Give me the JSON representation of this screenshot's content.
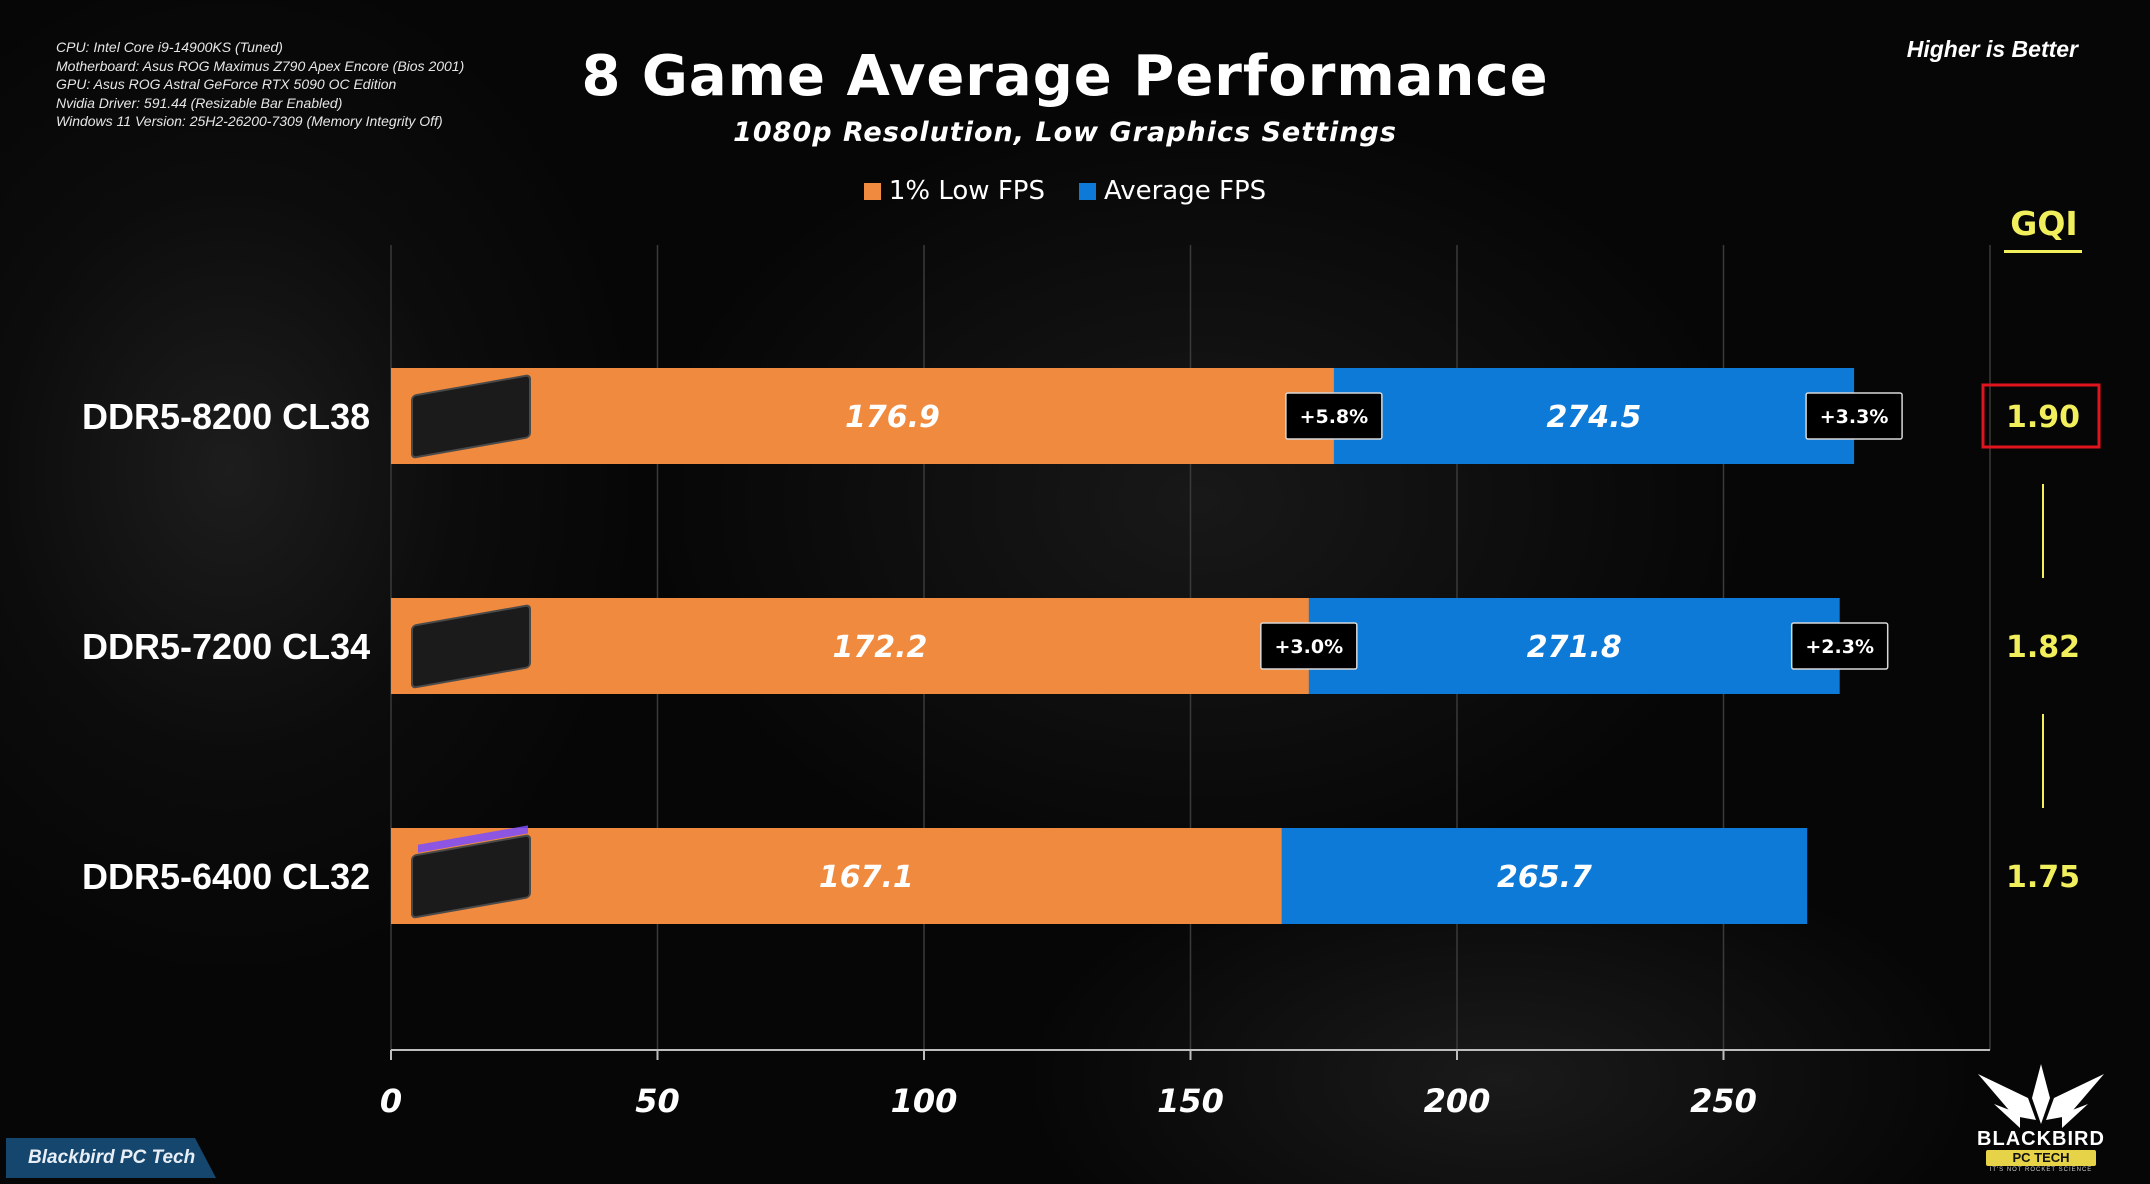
{
  "header": {
    "title": "8 Game Average Performance",
    "subtitle": "1080p Resolution, Low Graphics Settings",
    "higher_is_better": "Higher is Better"
  },
  "specs": [
    "CPU: Intel Core i9-14900KS (Tuned)",
    "Motherboard: Asus ROG Maximus Z790 Apex Encore (Bios 2001)",
    "GPU: Asus ROG Astral GeForce RTX 5090 OC Edition",
    "Nvidia Driver: 591.44 (Resizable Bar Enabled)",
    "Windows 11 Version:  25H2-26200-7309 (Memory Integrity Off)"
  ],
  "legend": {
    "low": "1% Low FPS",
    "avg": "Average FPS"
  },
  "gqi": {
    "header": "GQI"
  },
  "brand": {
    "tab": "Blackbird PC Tech",
    "logo_main": "BLACKBIRD",
    "logo_sub": "PC TECH",
    "logo_tag": "IT'S NOT ROCKET SCIENCE"
  },
  "colors": {
    "low": "#f08a3e",
    "avg": "#0d7ad8",
    "gqi": "#f2ef5c",
    "highlight": "#e0141e"
  },
  "chart_data": {
    "type": "bar",
    "orientation": "horizontal",
    "title": "8 Game Average Performance",
    "subtitle": "1080p Resolution, Low Graphics Settings",
    "categories": [
      "DDR5-8200 CL38",
      "DDR5-7200 CL34",
      "DDR5-6400 CL32"
    ],
    "series": [
      {
        "name": "1% Low FPS",
        "values": [
          176.9,
          172.2,
          167.1
        ],
        "pct_gain": [
          "+5.8%",
          "+3.0%",
          ""
        ]
      },
      {
        "name": "Average FPS",
        "values": [
          274.5,
          271.8,
          265.7
        ],
        "pct_gain": [
          "+3.3%",
          "+2.3%",
          ""
        ]
      }
    ],
    "gqi": [
      "1.90",
      "1.82",
      "1.75"
    ],
    "gqi_highlight_index": 0,
    "xlim": [
      0,
      300
    ],
    "xticks": [
      0,
      50,
      100,
      150,
      200,
      250
    ],
    "grid": true,
    "legend_position": "top-center"
  }
}
